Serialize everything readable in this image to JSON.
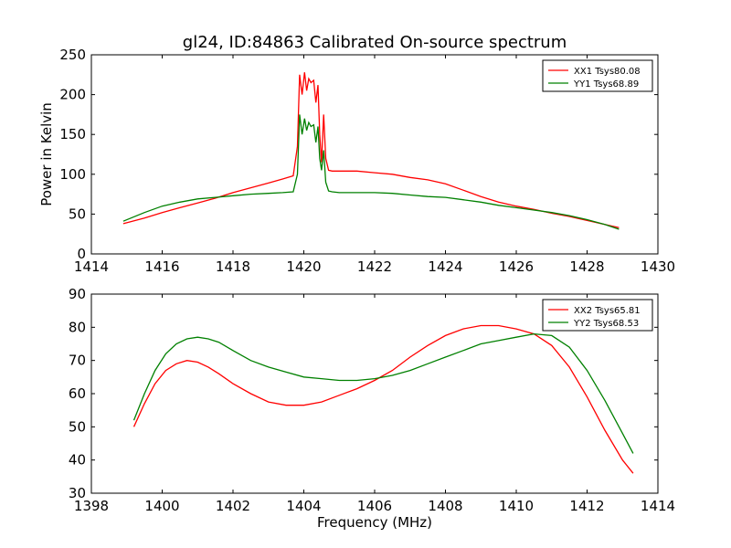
{
  "chart_data": [
    {
      "type": "line",
      "title": "gl24, ID:84863 Calibrated On-source spectrum",
      "xlabel": "",
      "ylabel": "Power in Kelvin",
      "xlim": [
        1414,
        1430
      ],
      "ylim": [
        0,
        250
      ],
      "xticks": [
        "1414",
        "1416",
        "1418",
        "1420",
        "1422",
        "1424",
        "1426",
        "1428",
        "1430"
      ],
      "yticks": [
        "0",
        "50",
        "100",
        "150",
        "200",
        "250"
      ],
      "legend": "top-right",
      "grid": false,
      "series": [
        {
          "name": "XX1 Tsys80.08",
          "color": "#ff0000",
          "x": [
            1414.9,
            1415.5,
            1416.0,
            1416.5,
            1417.0,
            1417.5,
            1418.0,
            1418.5,
            1419.0,
            1419.4,
            1419.7,
            1419.82,
            1419.88,
            1419.95,
            1420.02,
            1420.08,
            1420.14,
            1420.2,
            1420.28,
            1420.34,
            1420.4,
            1420.45,
            1420.5,
            1420.56,
            1420.62,
            1420.7,
            1420.8,
            1421.0,
            1421.5,
            1422.0,
            1422.5,
            1423.0,
            1423.5,
            1424.0,
            1424.5,
            1425.0,
            1425.5,
            1426.0,
            1426.5,
            1427.0,
            1427.5,
            1428.0,
            1428.5,
            1428.9
          ],
          "y": [
            38,
            45,
            52,
            58,
            64,
            70,
            77,
            83,
            89,
            94,
            98,
            135,
            225,
            200,
            228,
            205,
            220,
            215,
            218,
            190,
            212,
            150,
            115,
            175,
            120,
            105,
            104,
            104,
            104,
            102,
            100,
            96,
            93,
            88,
            80,
            72,
            65,
            60,
            56,
            51,
            47,
            42,
            37,
            33
          ]
        },
        {
          "name": "YY1 Tsys68.89",
          "color": "#008000",
          "x": [
            1414.9,
            1415.5,
            1416.0,
            1416.5,
            1417.0,
            1417.5,
            1418.0,
            1418.5,
            1419.0,
            1419.4,
            1419.7,
            1419.82,
            1419.88,
            1419.95,
            1420.02,
            1420.08,
            1420.14,
            1420.2,
            1420.28,
            1420.34,
            1420.4,
            1420.45,
            1420.5,
            1420.56,
            1420.62,
            1420.7,
            1420.8,
            1421.0,
            1421.5,
            1422.0,
            1422.5,
            1423.0,
            1423.5,
            1424.0,
            1424.5,
            1425.0,
            1425.5,
            1426.0,
            1426.5,
            1427.0,
            1427.5,
            1428.0,
            1428.5,
            1428.9
          ],
          "y": [
            41,
            52,
            60,
            65,
            69,
            71,
            73,
            75,
            76,
            77,
            78,
            100,
            175,
            150,
            170,
            155,
            165,
            160,
            162,
            140,
            160,
            120,
            105,
            130,
            90,
            79,
            78,
            77,
            77,
            77,
            76,
            74,
            72,
            71,
            68,
            65,
            61,
            58,
            55,
            52,
            48,
            43,
            37,
            31
          ]
        }
      ]
    },
    {
      "type": "line",
      "title": "",
      "xlabel": "Frequency (MHz)",
      "ylabel": "",
      "xlim": [
        1398,
        1414
      ],
      "ylim": [
        30,
        90
      ],
      "xticks": [
        "1398",
        "1400",
        "1402",
        "1404",
        "1406",
        "1408",
        "1410",
        "1412",
        "1414"
      ],
      "yticks": [
        "30",
        "40",
        "50",
        "60",
        "70",
        "80",
        "90"
      ],
      "legend": "top-right",
      "grid": false,
      "series": [
        {
          "name": "XX2 Tsys65.81",
          "color": "#ff0000",
          "x": [
            1399.2,
            1399.5,
            1399.8,
            1400.1,
            1400.4,
            1400.7,
            1401.0,
            1401.3,
            1401.6,
            1402.0,
            1402.5,
            1403.0,
            1403.5,
            1404.0,
            1404.5,
            1405.0,
            1405.5,
            1406.0,
            1406.5,
            1407.0,
            1407.5,
            1408.0,
            1408.5,
            1409.0,
            1409.5,
            1410.0,
            1410.5,
            1411.0,
            1411.5,
            1412.0,
            1412.5,
            1413.0,
            1413.3
          ],
          "y": [
            50,
            57,
            63,
            67,
            69,
            70,
            69.5,
            68,
            66,
            63,
            60,
            57.5,
            56.5,
            56.5,
            57.5,
            59.5,
            61.5,
            64,
            67,
            71,
            74.5,
            77.5,
            79.5,
            80.5,
            80.5,
            79.5,
            78,
            74.5,
            68,
            59,
            49,
            40,
            36
          ]
        },
        {
          "name": "YY2 Tsys68.53",
          "color": "#008000",
          "x": [
            1399.2,
            1399.5,
            1399.8,
            1400.1,
            1400.4,
            1400.7,
            1401.0,
            1401.3,
            1401.6,
            1402.0,
            1402.5,
            1403.0,
            1403.5,
            1404.0,
            1404.5,
            1405.0,
            1405.5,
            1406.0,
            1406.5,
            1407.0,
            1407.5,
            1408.0,
            1408.5,
            1409.0,
            1409.5,
            1410.0,
            1410.5,
            1411.0,
            1411.5,
            1412.0,
            1412.5,
            1413.0,
            1413.3
          ],
          "y": [
            52,
            60,
            67,
            72,
            75,
            76.5,
            77,
            76.5,
            75.5,
            73,
            70,
            68,
            66.5,
            65,
            64.5,
            64,
            64,
            64.5,
            65.5,
            67,
            69,
            71,
            73,
            75,
            76,
            77,
            78,
            77.5,
            74,
            67,
            58,
            48,
            42
          ]
        }
      ]
    }
  ]
}
